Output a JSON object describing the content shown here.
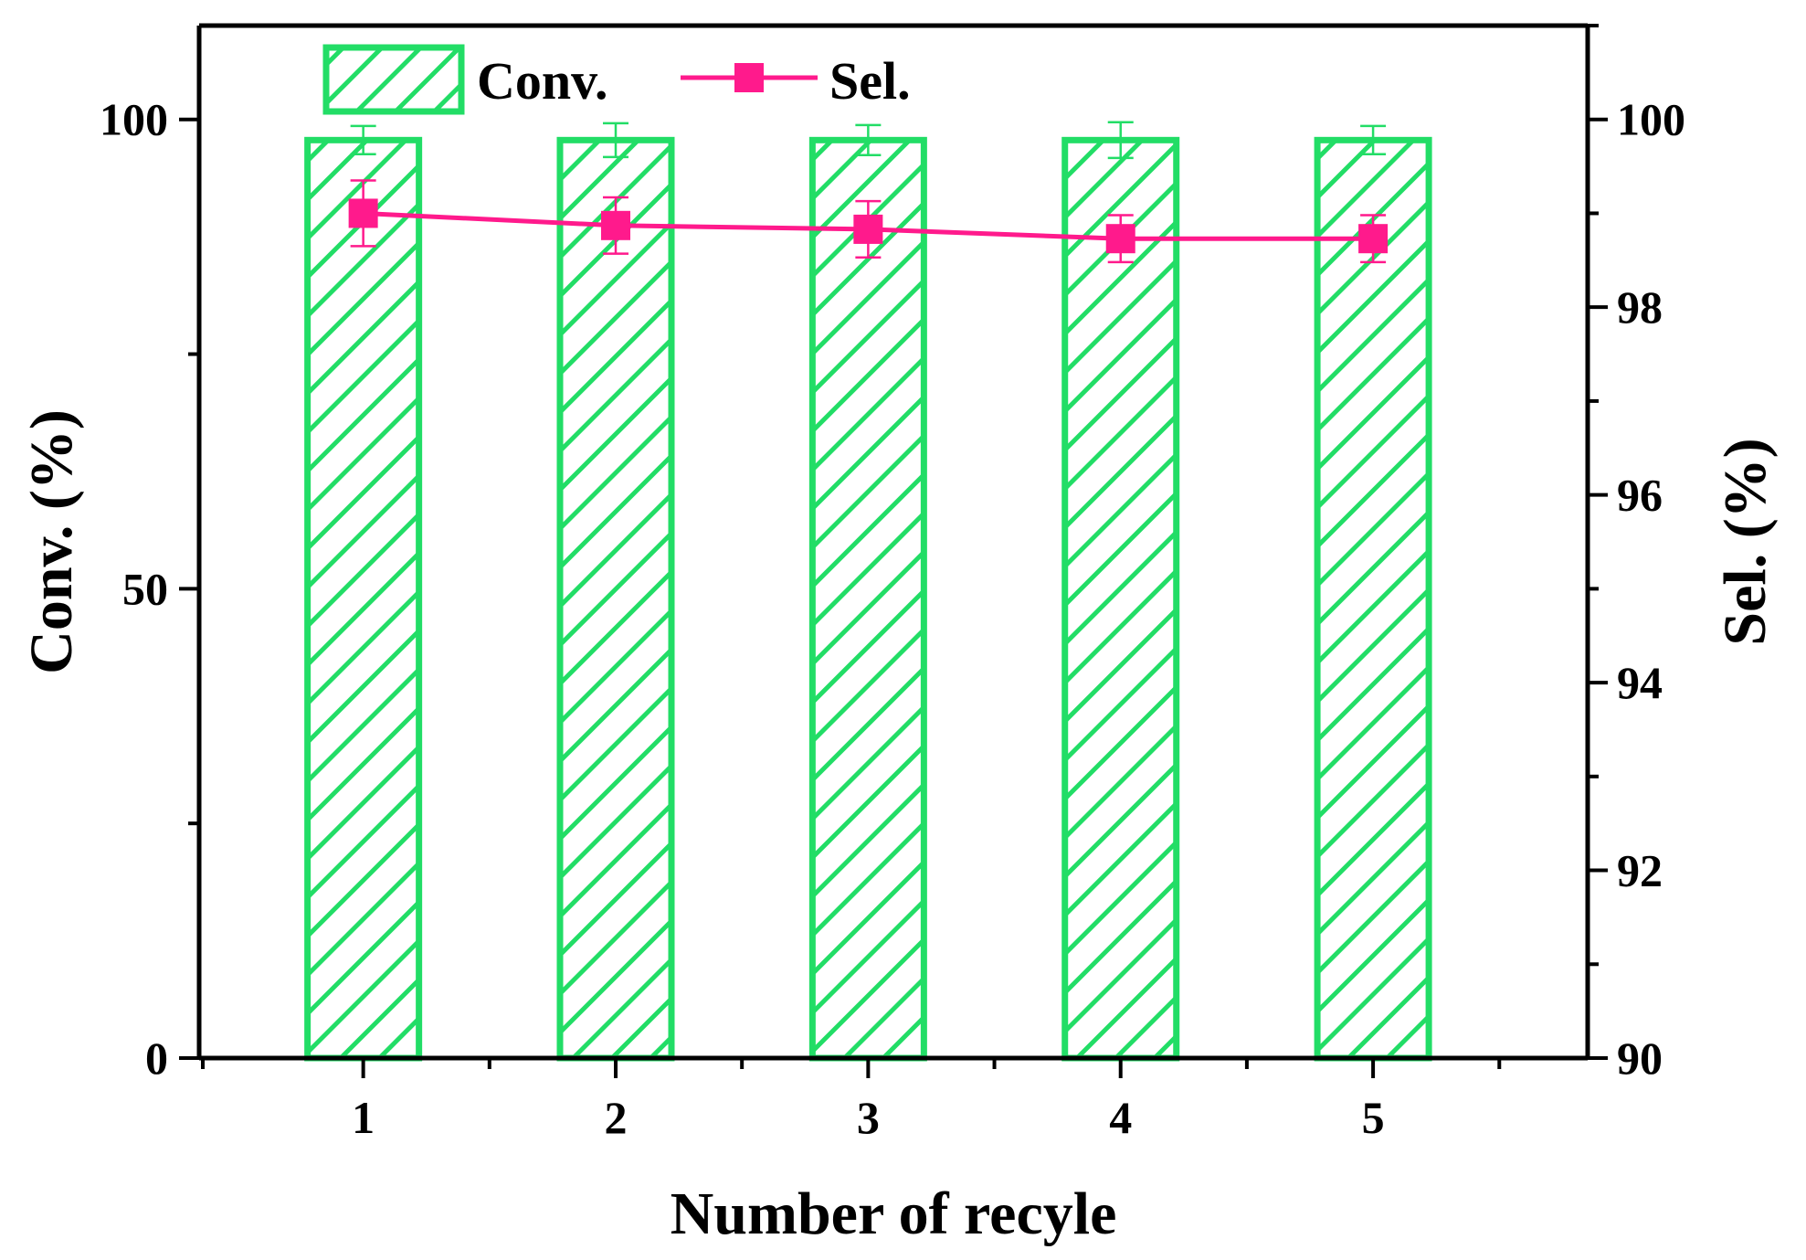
{
  "chart_data": {
    "type": "bar",
    "categories": [
      "1",
      "2",
      "3",
      "4",
      "5"
    ],
    "xlabel": "Number of recyle",
    "ylabel": "Conv. (%)",
    "y2label": "Sel. (%)",
    "ylim": [
      0,
      100
    ],
    "ylim_display": [
      0,
      110
    ],
    "y2lim": [
      90,
      100
    ],
    "y2lim_display": [
      90,
      101
    ],
    "yticks": [
      0,
      50,
      100
    ],
    "y2ticks": [
      90,
      92,
      94,
      96,
      98,
      100
    ],
    "grid": false,
    "legend_position": "top-left",
    "series": [
      {
        "name": "Conv.",
        "kind": "bar",
        "axis": "left",
        "color": "#22dd66",
        "pattern": "diagonal-hatch",
        "values": [
          97.8,
          97.8,
          97.8,
          97.8,
          97.8
        ],
        "errors": [
          1.5,
          1.8,
          1.6,
          1.9,
          1.5
        ]
      },
      {
        "name": "Sel.",
        "kind": "line",
        "axis": "right",
        "color": "#ff1a8c",
        "marker": "square",
        "values": [
          99.0,
          98.87,
          98.83,
          98.73,
          98.73
        ],
        "errors": [
          0.35,
          0.3,
          0.3,
          0.25,
          0.25
        ]
      }
    ]
  }
}
